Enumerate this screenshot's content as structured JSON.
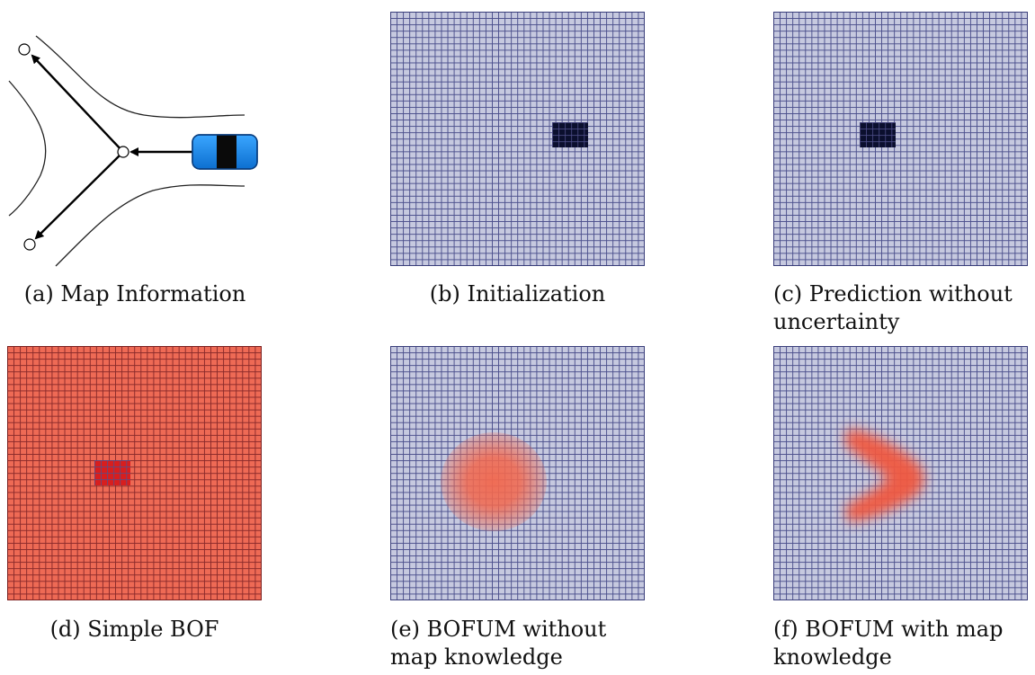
{
  "captions": {
    "a": "(a) Map Information",
    "b": "(b) Initialization",
    "c_line1": "(c) Prediction without",
    "c_line2": "uncertainty",
    "d": "(d) Simple BOF",
    "e_line1": "(e) BOFUM without",
    "e_line2": "map knowledge",
    "f_line1": "(f) BOFUM with map",
    "f_line2": "knowledge"
  },
  "colors": {
    "grid_fill": "#c6c9df",
    "grid_line": "#4b4f8c",
    "occupied_cell": "#0b0f2e",
    "bof_fill": "#ee6a55",
    "bof_occupied": "#d81e1e",
    "uncertainty_blob": "#f2684e",
    "car_body": "#1a8cf0"
  },
  "grid": {
    "cells_per_side": 40
  }
}
